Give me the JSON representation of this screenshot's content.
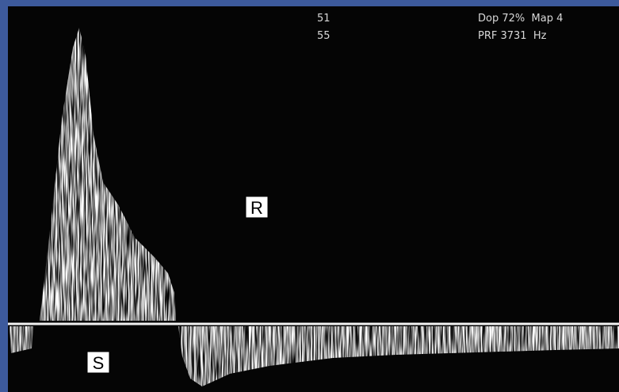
{
  "readouts": {
    "depth": [
      "51",
      "55"
    ],
    "doppler": "Dop 72%  Map 4",
    "prf": "PRF 3731  Hz"
  },
  "labels": {
    "r": "R",
    "s": "S"
  }
}
